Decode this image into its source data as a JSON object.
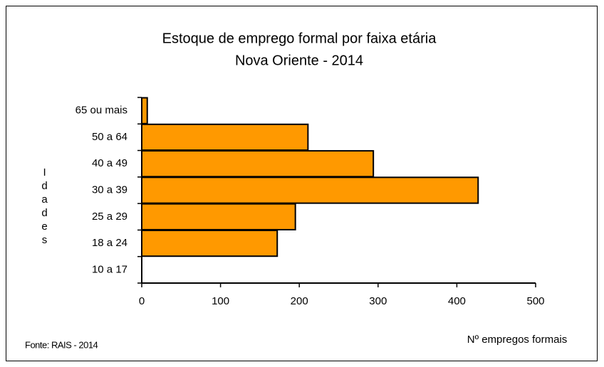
{
  "chart_data": {
    "type": "bar",
    "orientation": "horizontal",
    "title": "Estoque de emprego formal por faixa etária",
    "subtitle": "Nova Oriente - 2014",
    "categories": [
      "65 ou mais",
      "50 a 64",
      "40 a 49",
      "30 a 39",
      "25 a 29",
      "18 a 24",
      "10 a 17"
    ],
    "values": [
      7,
      211,
      294,
      427,
      195,
      172,
      0
    ],
    "color": "#ff9900",
    "xlim": [
      0,
      500
    ],
    "xticks": [
      0,
      100,
      200,
      300,
      400,
      500
    ],
    "y_label": "Idades",
    "x_label": "Nº empregos formais",
    "source": "Fonte: RAIS - 2014",
    "grid": false
  }
}
